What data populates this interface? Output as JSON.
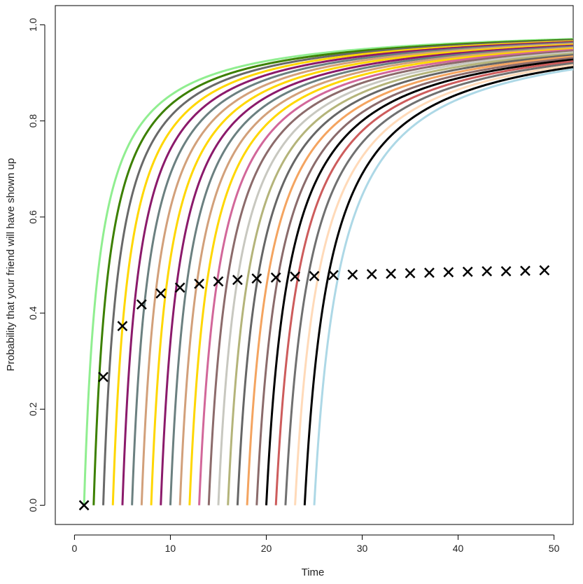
{
  "chart_data": {
    "type": "line",
    "title": "",
    "xlabel": "Time",
    "ylabel": "Probability that your friend will have shown up",
    "xlim": [
      -2,
      52
    ],
    "ylim": [
      -0.04,
      1.04
    ],
    "x_ticks": [
      0,
      10,
      20,
      30,
      40,
      50
    ],
    "x_tick_labels": [
      "0",
      "10",
      "20",
      "30",
      "40",
      "50"
    ],
    "y_ticks": [
      0.0,
      0.2,
      0.4,
      0.6,
      0.8,
      1.0
    ],
    "y_tick_labels": [
      "0.0",
      "0.2",
      "0.4",
      "0.6",
      "0.8",
      "1.0"
    ],
    "grid": false,
    "series_model": "probability rises from 0 at start time s and approaches 1",
    "series": [
      {
        "name": "start 1",
        "start": 1,
        "color": "#90ee90"
      },
      {
        "name": "start 2",
        "start": 2,
        "color": "#3c8000"
      },
      {
        "name": "start 3",
        "start": 3,
        "color": "#696969"
      },
      {
        "name": "start 4",
        "start": 4,
        "color": "#ffd700"
      },
      {
        "name": "start 5",
        "start": 5,
        "color": "#8b1a6b"
      },
      {
        "name": "start 6",
        "start": 6,
        "color": "#6b8080"
      },
      {
        "name": "start 7",
        "start": 7,
        "color": "#d2a07a"
      },
      {
        "name": "start 8",
        "start": 8,
        "color": "#ffd700"
      },
      {
        "name": "start 9",
        "start": 9,
        "color": "#8b1a6b"
      },
      {
        "name": "start 10",
        "start": 10,
        "color": "#6b8080"
      },
      {
        "name": "start 11",
        "start": 11,
        "color": "#d2a07a"
      },
      {
        "name": "start 12",
        "start": 12,
        "color": "#ffd700"
      },
      {
        "name": "start 13",
        "start": 13,
        "color": "#d2679a"
      },
      {
        "name": "start 14",
        "start": 14,
        "color": "#8c6b6b"
      },
      {
        "name": "start 15",
        "start": 15,
        "color": "#c8c8c0"
      },
      {
        "name": "start 16",
        "start": 16,
        "color": "#b4b47a"
      },
      {
        "name": "start 17",
        "start": 17,
        "color": "#666666"
      },
      {
        "name": "start 18",
        "start": 18,
        "color": "#f4a460"
      },
      {
        "name": "start 19",
        "start": 19,
        "color": "#8b6b6b"
      },
      {
        "name": "start 20",
        "start": 20,
        "color": "#000000"
      },
      {
        "name": "start 21",
        "start": 21,
        "color": "#cd5c5c"
      },
      {
        "name": "start 22",
        "start": 22,
        "color": "#707070"
      },
      {
        "name": "start 23",
        "start": 23,
        "color": "#ffdab9"
      },
      {
        "name": "start 24",
        "start": 24,
        "color": "#000000"
      },
      {
        "name": "start 25",
        "start": 25,
        "color": "#add8e6"
      }
    ],
    "markers": {
      "symbol": "x",
      "color": "#000000",
      "points": [
        {
          "x": 1,
          "y": 0.0
        },
        {
          "x": 3,
          "y": 0.267
        },
        {
          "x": 5,
          "y": 0.373
        },
        {
          "x": 7,
          "y": 0.418
        },
        {
          "x": 9,
          "y": 0.441
        },
        {
          "x": 11,
          "y": 0.453
        },
        {
          "x": 13,
          "y": 0.461
        },
        {
          "x": 15,
          "y": 0.466
        },
        {
          "x": 17,
          "y": 0.469
        },
        {
          "x": 19,
          "y": 0.472
        },
        {
          "x": 21,
          "y": 0.474
        },
        {
          "x": 23,
          "y": 0.476
        },
        {
          "x": 25,
          "y": 0.477
        },
        {
          "x": 27,
          "y": 0.479
        },
        {
          "x": 29,
          "y": 0.48
        },
        {
          "x": 31,
          "y": 0.481
        },
        {
          "x": 33,
          "y": 0.482
        },
        {
          "x": 35,
          "y": 0.483
        },
        {
          "x": 37,
          "y": 0.484
        },
        {
          "x": 39,
          "y": 0.485
        },
        {
          "x": 41,
          "y": 0.486
        },
        {
          "x": 43,
          "y": 0.487
        },
        {
          "x": 45,
          "y": 0.487
        },
        {
          "x": 47,
          "y": 0.488
        },
        {
          "x": 49,
          "y": 0.489
        }
      ]
    }
  }
}
